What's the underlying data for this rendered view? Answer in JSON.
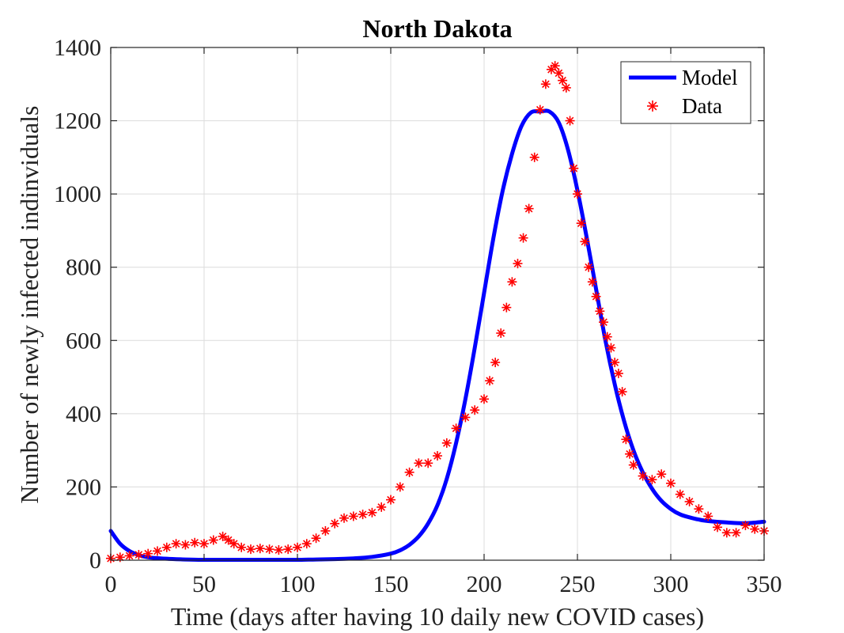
{
  "chart_data": {
    "type": "line",
    "title": "North Dakota",
    "xlabel": "Time (days after having 10 daily new COVID cases)",
    "ylabel": "Number of newly infected indinviduals",
    "xlim": [
      0,
      350
    ],
    "ylim": [
      0,
      1400
    ],
    "x_ticks": [
      "0",
      "50",
      "100",
      "150",
      "200",
      "250",
      "300",
      "350"
    ],
    "y_ticks": [
      "0",
      "200",
      "400",
      "600",
      "800",
      "1000",
      "1200",
      "1400"
    ],
    "grid": true,
    "legend_position": "top-right",
    "series": [
      {
        "name": "Model",
        "style": "line",
        "color": "#0000ff",
        "x": [
          0,
          5,
          10,
          15,
          20,
          30,
          40,
          50,
          60,
          70,
          80,
          90,
          100,
          110,
          120,
          130,
          140,
          150,
          155,
          160,
          165,
          170,
          175,
          180,
          185,
          190,
          195,
          200,
          205,
          210,
          215,
          220,
          225,
          230,
          235,
          240,
          245,
          250,
          255,
          260,
          265,
          270,
          275,
          280,
          285,
          290,
          295,
          300,
          305,
          310,
          315,
          320,
          330,
          340,
          350
        ],
        "y": [
          80,
          45,
          25,
          14,
          8,
          4,
          2,
          1,
          1,
          1,
          1,
          1,
          1,
          2,
          3,
          5,
          9,
          18,
          27,
          42,
          65,
          100,
          150,
          222,
          320,
          440,
          580,
          730,
          880,
          1010,
          1110,
          1185,
          1222,
          1225,
          1225,
          1195,
          1120,
          1010,
          880,
          740,
          600,
          480,
          380,
          300,
          240,
          195,
          162,
          140,
          125,
          117,
          111,
          107,
          103,
          101,
          105
        ]
      },
      {
        "name": "Data",
        "style": "marker",
        "color": "#ff0000",
        "x": [
          0,
          5,
          10,
          15,
          20,
          25,
          30,
          35,
          40,
          45,
          50,
          55,
          60,
          63,
          66,
          70,
          75,
          80,
          85,
          90,
          95,
          100,
          105,
          110,
          115,
          120,
          125,
          130,
          135,
          140,
          145,
          150,
          155,
          160,
          165,
          170,
          175,
          180,
          185,
          190,
          195,
          200,
          203,
          206,
          209,
          212,
          215,
          218,
          221,
          224,
          227,
          230,
          233,
          236,
          238,
          240,
          242,
          244,
          246,
          248,
          250,
          252,
          254,
          256,
          258,
          260,
          262,
          264,
          266,
          268,
          270,
          272,
          274,
          276,
          278,
          280,
          285,
          290,
          295,
          300,
          305,
          310,
          315,
          320,
          325,
          330,
          335,
          340,
          345,
          350
        ],
        "y": [
          5,
          8,
          12,
          15,
          18,
          25,
          35,
          45,
          42,
          48,
          45,
          55,
          65,
          55,
          45,
          35,
          30,
          32,
          30,
          28,
          30,
          35,
          45,
          60,
          80,
          100,
          115,
          120,
          125,
          130,
          145,
          165,
          200,
          240,
          265,
          265,
          285,
          320,
          360,
          390,
          410,
          440,
          490,
          540,
          620,
          690,
          760,
          810,
          880,
          960,
          1100,
          1230,
          1300,
          1340,
          1350,
          1330,
          1310,
          1290,
          1200,
          1070,
          1000,
          920,
          870,
          800,
          760,
          720,
          680,
          650,
          610,
          580,
          540,
          510,
          460,
          330,
          290,
          260,
          230,
          220,
          235,
          210,
          180,
          160,
          140,
          120,
          90,
          75,
          75,
          95,
          85,
          80
        ]
      }
    ]
  }
}
